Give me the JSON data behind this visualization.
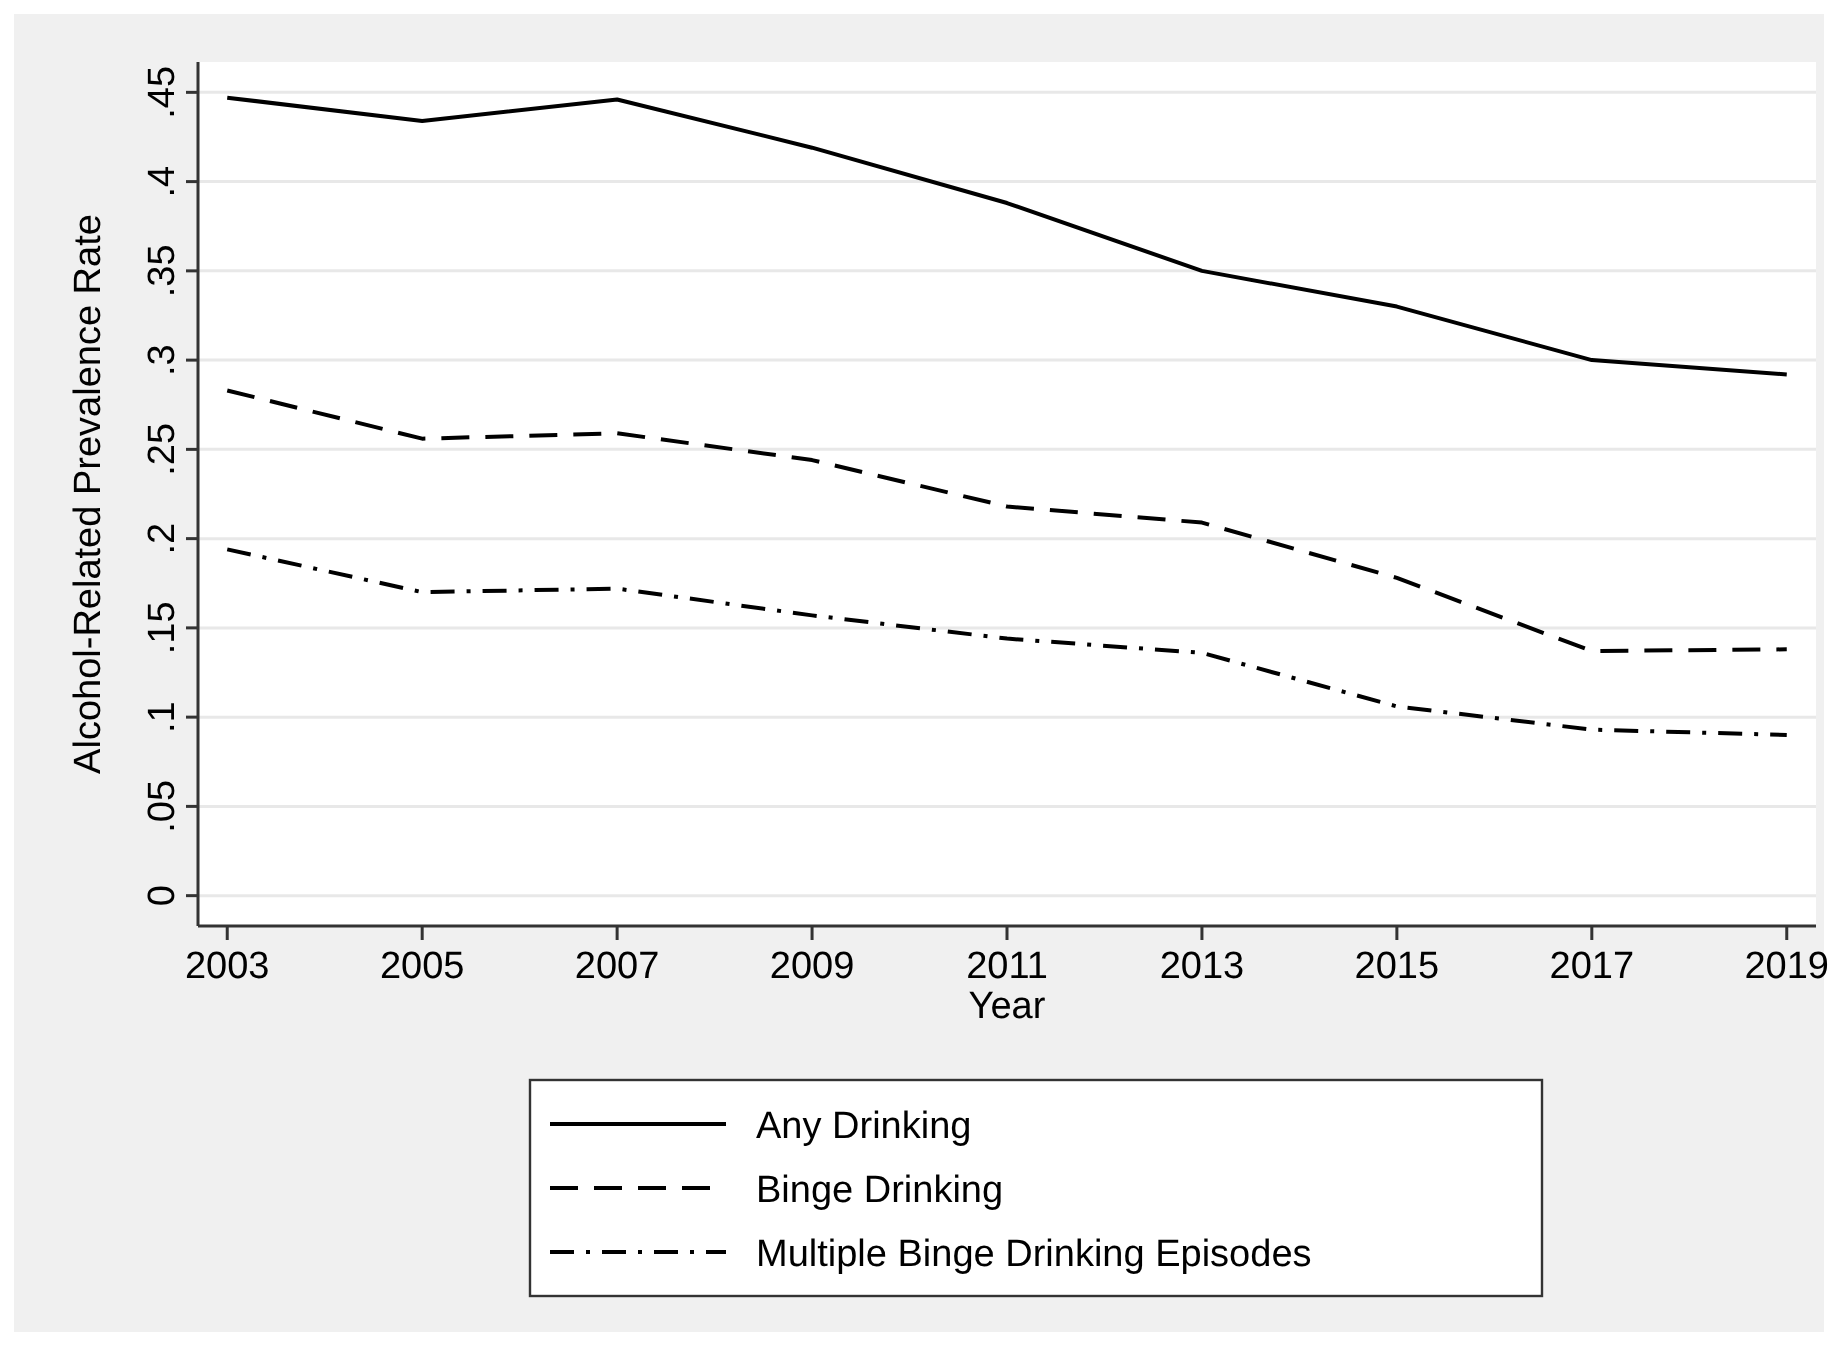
{
  "chart_data": {
    "type": "line",
    "xlabel": "Year",
    "ylabel": "Alcohol-Related Prevalence Rate",
    "x": [
      2003,
      2005,
      2007,
      2009,
      2011,
      2013,
      2015,
      2017,
      2019
    ],
    "xlim": [
      2002.7,
      2019.3
    ],
    "xticks": [
      2003,
      2005,
      2007,
      2009,
      2011,
      2013,
      2015,
      2017,
      2019
    ],
    "ylim": [
      -0.017,
      0.467
    ],
    "yticks": [
      {
        "value": 0,
        "label": "0"
      },
      {
        "value": 0.05,
        "label": ".05"
      },
      {
        "value": 0.1,
        "label": ".1"
      },
      {
        "value": 0.15,
        "label": ".15"
      },
      {
        "value": 0.2,
        "label": ".2"
      },
      {
        "value": 0.25,
        "label": ".25"
      },
      {
        "value": 0.3,
        "label": ".3"
      },
      {
        "value": 0.35,
        "label": ".35"
      },
      {
        "value": 0.4,
        "label": ".4"
      },
      {
        "value": 0.45,
        "label": ".45"
      }
    ],
    "grid": "y",
    "legend": "bottom",
    "marker": "none",
    "series": [
      {
        "name": "Any Drinking",
        "color": "#000000",
        "line_style": "solid",
        "values": [
          0.447,
          0.434,
          0.446,
          0.419,
          0.388,
          0.35,
          0.33,
          0.3,
          0.292
        ]
      },
      {
        "name": "Binge Drinking",
        "color": "#000000",
        "line_style": "dashed",
        "values": [
          0.283,
          0.256,
          0.259,
          0.244,
          0.218,
          0.209,
          0.178,
          0.137,
          0.138
        ]
      },
      {
        "name": "Multiple Binge Drinking Episodes",
        "color": "#000000",
        "line_style": "dashdot",
        "values": [
          0.194,
          0.17,
          0.172,
          0.157,
          0.144,
          0.136,
          0.106,
          0.093,
          0.09
        ]
      }
    ]
  }
}
